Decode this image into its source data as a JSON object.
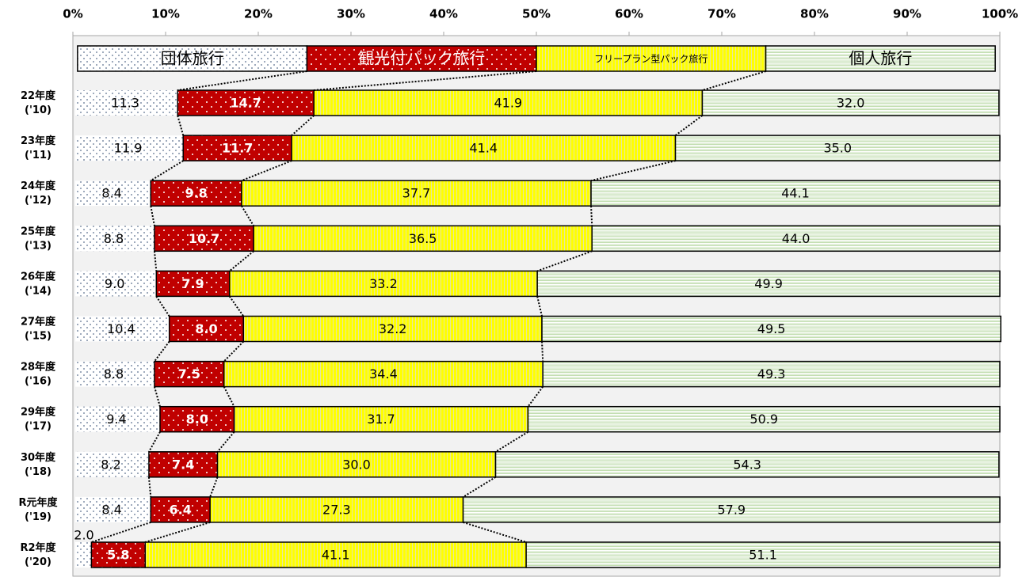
{
  "chart_data": {
    "type": "stacked-bar-100",
    "orientation": "horizontal",
    "categories": [
      "22年度\n('10)",
      "23年度\n('11)",
      "24年度\n('12)",
      "25年度\n('13)",
      "26年度\n('14)",
      "27年度\n('15)",
      "28年度\n('16)",
      "29年度\n('17)",
      "30年度\n('18)",
      "R元年度\n('19)",
      "R2年度\n('20)"
    ],
    "series": [
      {
        "name": "団体旅行",
        "color": "#ffffff",
        "values": [
          11.3,
          11.9,
          8.4,
          8.8,
          9.0,
          10.4,
          8.8,
          9.4,
          8.2,
          8.4,
          2.0
        ],
        "value_labels": [
          "11.3",
          "11.9",
          "8.4",
          "8.8",
          "9.0",
          "10.4",
          "8.8",
          "9.4",
          "8.2",
          "8.4",
          "2.0"
        ]
      },
      {
        "name": "観光付パック旅行",
        "color": "#c00000",
        "values": [
          14.7,
          11.7,
          9.8,
          10.7,
          7.9,
          8.0,
          7.5,
          8.0,
          7.4,
          6.4,
          5.8
        ],
        "value_labels": [
          "14.7",
          "11.7",
          "9.8",
          "10.7",
          "7.9",
          "8.0",
          "7.5",
          "8.0",
          "7.4",
          "6.4",
          "5.8"
        ]
      },
      {
        "name": "フリープラン型パック旅行",
        "color": "#ffff00",
        "values": [
          41.9,
          41.4,
          37.7,
          36.5,
          33.2,
          32.2,
          34.4,
          31.7,
          30.0,
          27.3,
          41.1
        ],
        "value_labels": [
          "41.9",
          "41.4",
          "37.7",
          "36.5",
          "33.2",
          "32.2",
          "34.4",
          "31.7",
          "30.0",
          "27.3",
          "41.1"
        ]
      },
      {
        "name": "個人旅行",
        "color": "#e2efda",
        "values": [
          32.0,
          35.0,
          44.1,
          44.0,
          49.9,
          49.5,
          49.3,
          50.9,
          54.3,
          57.9,
          51.1
        ],
        "value_labels": [
          "32.0",
          "35.0",
          "44.1",
          "44.0",
          "49.9",
          "49.5",
          "49.3",
          "50.9",
          "54.3",
          "57.9",
          "51.1"
        ]
      }
    ],
    "xlim": [
      0,
      100
    ],
    "xticks": [
      {
        "value": 0,
        "label": "0%"
      },
      {
        "value": 10,
        "label": "10%"
      },
      {
        "value": 20,
        "label": "20%"
      },
      {
        "value": 30,
        "label": "30%"
      },
      {
        "value": 40,
        "label": "40%"
      },
      {
        "value": 50,
        "label": "50%"
      },
      {
        "value": 60,
        "label": "60%"
      },
      {
        "value": 70,
        "label": "70%"
      },
      {
        "value": 80,
        "label": "80%"
      },
      {
        "value": 90,
        "label": "90%"
      },
      {
        "value": 100,
        "label": "100%"
      }
    ]
  }
}
